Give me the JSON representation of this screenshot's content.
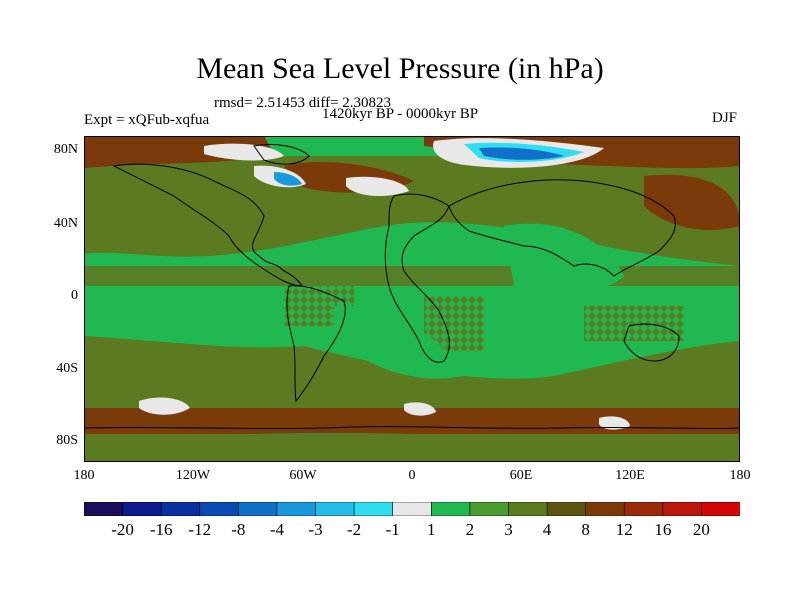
{
  "title": "Mean Sea Level Pressure (in hPa)",
  "stats": "rmsd= 2.51453  diff= 2.30823",
  "subtitle": "1420kyr BP - 0000kyr BP",
  "experiment": "Expt = xQFub-xqfua",
  "season": "DJF",
  "lat_labels": [
    "80N",
    "40N",
    "0",
    "40S",
    "80S"
  ],
  "lon_labels": [
    "180",
    "120W",
    "60W",
    "0",
    "60E",
    "120E",
    "180"
  ],
  "colorbar": {
    "labels": [
      "-20",
      "-16",
      "-12",
      "-8",
      "-4",
      "-3",
      "-2",
      "-1",
      "1",
      "2",
      "3",
      "4",
      "8",
      "12",
      "16",
      "20"
    ],
    "colors": [
      "#1a0c5a",
      "#0b1a8c",
      "#08309e",
      "#0b4ab2",
      "#1070c8",
      "#1a98dc",
      "#24bce8",
      "#30dcf0",
      "#e8e8e8",
      "#20b850",
      "#4a9a30",
      "#5c7a20",
      "#5e5210",
      "#7a3a0a",
      "#9a2a0a",
      "#b8180a",
      "#d40606"
    ]
  },
  "map": {
    "colors": {
      "ocean_green": "#20b850",
      "land_olive": "#5c7a20",
      "high_brown": "#7a3a0a",
      "neutral_white": "#e8e8e8",
      "low_blue": "#1070c8",
      "low_cyan": "#30dcf0"
    }
  }
}
